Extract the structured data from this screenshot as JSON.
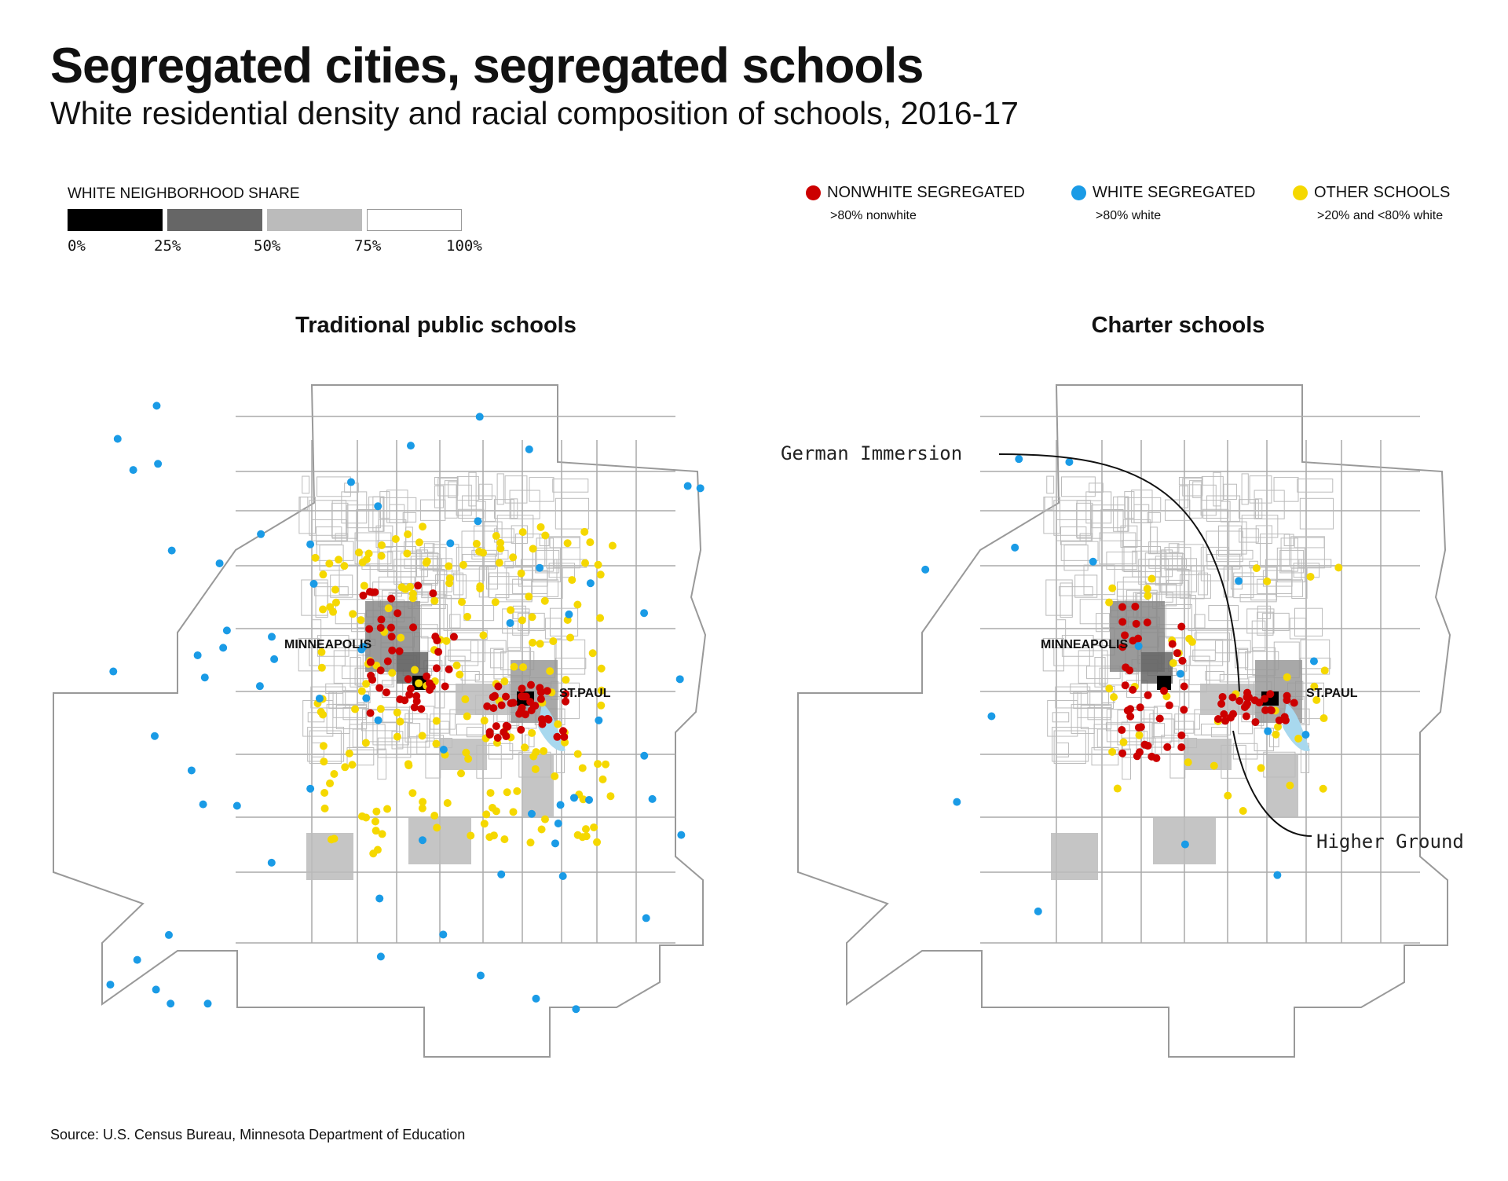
{
  "title": "Segregated cities, segregated schools",
  "subtitle": "White residential density and racial composition of schools, 2016-17",
  "legend_density": {
    "title": "WHITE NEIGHBORHOOD SHARE",
    "ticks": [
      "0%",
      "25%",
      "50%",
      "75%",
      "100%"
    ],
    "colors": [
      "#000000",
      "#666666",
      "#bbbbbb",
      "#ffffff"
    ]
  },
  "legend_schools": [
    {
      "label": "NONWHITE SEGREGATED",
      "sub": ">80% nonwhite",
      "color": "#cc0000"
    },
    {
      "label": "WHITE SEGREGATED",
      "sub": ">80% white",
      "color": "#1a9be6"
    },
    {
      "label": "OTHER SCHOOLS",
      "sub": ">20% and <80% white",
      "color": "#f5d800"
    }
  ],
  "panels": {
    "left": {
      "title": "Traditional public schools",
      "city1": "MINNEAPOLIS",
      "city2": "ST.PAUL"
    },
    "right": {
      "title": "Charter schools",
      "city1": "MINNEAPOLIS",
      "city2": "ST.PAUL",
      "annotation1": "German Immersion",
      "annotation2": "Higher Ground"
    }
  },
  "source": "Source: U.S. Census Bureau, Minnesota Department of Education"
}
